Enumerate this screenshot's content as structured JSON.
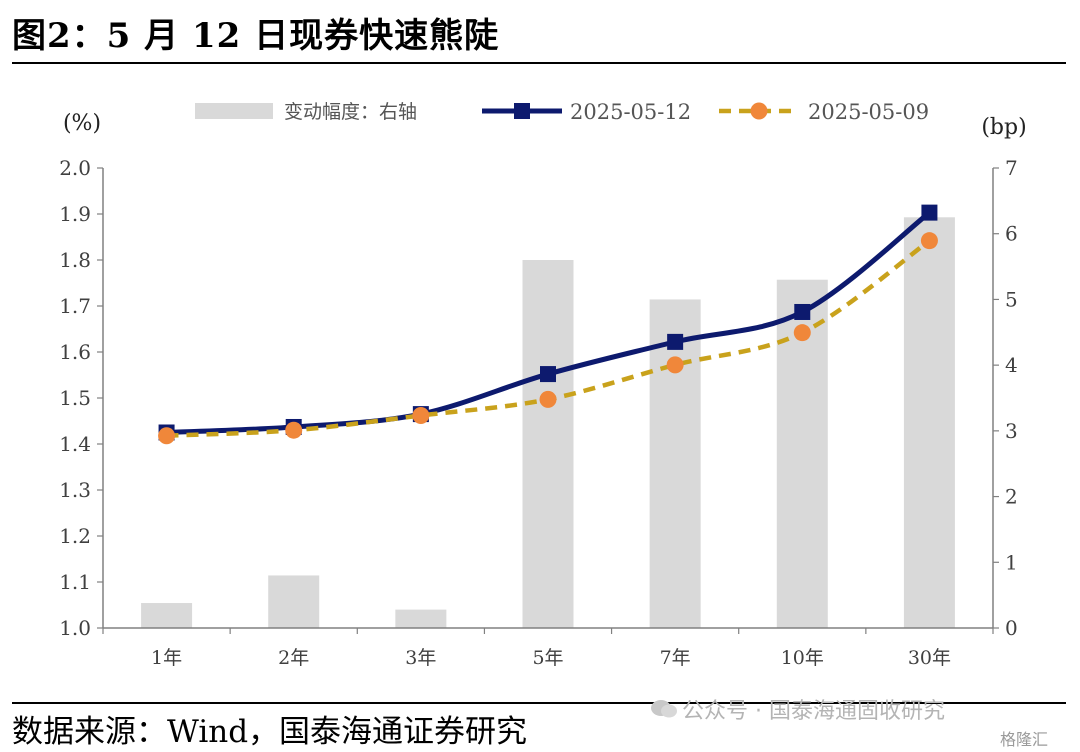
{
  "figure": {
    "title": "图2：5 月 12 日现券快速熊陡",
    "source": "数据来源：Wind，国泰海通证券研究",
    "watermark": "公众号 · 国泰海通固收研究",
    "corner_logo": "格隆汇"
  },
  "colors": {
    "bar": "#d9d9d9",
    "series_0512": "#0d1a6e",
    "series_0509_line": "#c9a21c",
    "series_0509_marker": "#f0873a",
    "axis": "#808080",
    "tick_text": "#404040"
  },
  "chart_data": {
    "type": "bar+line",
    "categories": [
      "1年",
      "2年",
      "3年",
      "5年",
      "7年",
      "10年",
      "30年"
    ],
    "left_axis": {
      "unit_label": "(%)",
      "ylim": [
        1.0,
        2.0
      ],
      "ticks": [
        "1.0",
        "1.1",
        "1.2",
        "1.3",
        "1.4",
        "1.5",
        "1.6",
        "1.7",
        "1.8",
        "1.9",
        "2.0"
      ]
    },
    "right_axis": {
      "unit_label": "(bp)",
      "ylim": [
        0,
        7
      ],
      "ticks": [
        "0",
        "1",
        "2",
        "3",
        "4",
        "5",
        "6",
        "7"
      ]
    },
    "series": [
      {
        "name": "变动幅度：右轴",
        "type": "bar",
        "axis": "right",
        "values": [
          0.38,
          0.8,
          0.28,
          5.6,
          5.0,
          5.3,
          6.25
        ]
      },
      {
        "name": "2025-05-12",
        "type": "line",
        "axis": "left",
        "marker": "square",
        "style": "solid",
        "values": [
          1.425,
          1.437,
          1.465,
          1.552,
          1.622,
          1.687,
          1.903
        ]
      },
      {
        "name": "2025-05-09",
        "type": "line",
        "axis": "left",
        "marker": "circle",
        "style": "dashed",
        "values": [
          1.418,
          1.43,
          1.462,
          1.497,
          1.572,
          1.642,
          1.842
        ]
      }
    ],
    "legend": "top",
    "grid": false
  }
}
